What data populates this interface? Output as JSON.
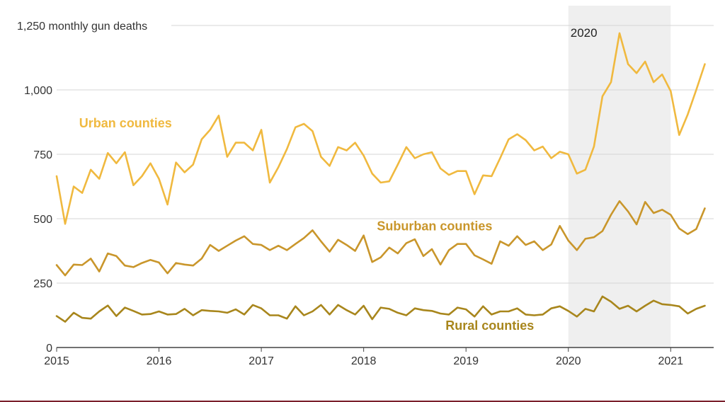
{
  "chart_data": {
    "type": "line",
    "ylabel": "monthly gun deaths",
    "ylim": [
      0,
      1250
    ],
    "yticks": [
      0,
      250,
      500,
      750,
      1000,
      1250
    ],
    "ytick_labels": [
      "0",
      "250",
      "500",
      "750",
      "1,000",
      "1,250"
    ],
    "ytick_top_suffix": "monthly gun deaths",
    "xlim": [
      2015,
      2021.42
    ],
    "xticks": [
      2015,
      2016,
      2017,
      2018,
      2019,
      2020,
      2021
    ],
    "xtick_labels": [
      "2015",
      "2016",
      "2017",
      "2018",
      "2019",
      "2020",
      "2021"
    ],
    "grid": true,
    "highlight_band": {
      "start": 2020,
      "end": 2021,
      "label": "2020",
      "color": "#efefef"
    },
    "x_start": 2015,
    "x_step": 0.0833333,
    "series": [
      {
        "name": "Urban counties",
        "color": "#f0b93f",
        "values": [
          665,
          480,
          625,
          600,
          690,
          655,
          755,
          715,
          758,
          630,
          665,
          715,
          655,
          555,
          718,
          680,
          710,
          808,
          845,
          900,
          740,
          795,
          795,
          765,
          845,
          640,
          700,
          770,
          855,
          868,
          840,
          740,
          705,
          778,
          765,
          795,
          745,
          675,
          640,
          645,
          710,
          778,
          735,
          750,
          758,
          695,
          670,
          685,
          685,
          595,
          668,
          665,
          735,
          808,
          828,
          805,
          765,
          780,
          735,
          760,
          750,
          675,
          690,
          780,
          975,
          1030,
          1220,
          1100,
          1065,
          1110,
          1030,
          1060,
          995,
          825,
          905,
          1000,
          1100
        ]
      },
      {
        "name": "Suburban counties",
        "color": "#c9962b",
        "values": [
          320,
          280,
          322,
          320,
          345,
          295,
          365,
          355,
          318,
          312,
          328,
          340,
          330,
          288,
          328,
          322,
          318,
          345,
          398,
          375,
          395,
          415,
          432,
          402,
          398,
          378,
          395,
          378,
          402,
          425,
          455,
          412,
          372,
          418,
          398,
          375,
          435,
          332,
          350,
          388,
          365,
          405,
          420,
          355,
          382,
          322,
          378,
          402,
          402,
          358,
          342,
          325,
          412,
          395,
          432,
          398,
          412,
          378,
          400,
          472,
          415,
          378,
          422,
          428,
          452,
          515,
          568,
          528,
          478,
          565,
          522,
          535,
          515,
          462,
          440,
          460,
          540
        ]
      },
      {
        "name": "Rural counties",
        "color": "#a8861c",
        "values": [
          122,
          100,
          135,
          115,
          112,
          140,
          163,
          122,
          155,
          142,
          128,
          130,
          140,
          128,
          130,
          150,
          125,
          145,
          142,
          140,
          135,
          148,
          128,
          165,
          152,
          125,
          125,
          112,
          160,
          125,
          140,
          165,
          128,
          165,
          145,
          128,
          162,
          110,
          155,
          150,
          135,
          125,
          152,
          145,
          142,
          132,
          128,
          155,
          148,
          120,
          160,
          128,
          140,
          140,
          152,
          128,
          125,
          128,
          152,
          160,
          142,
          120,
          150,
          140,
          198,
          178,
          150,
          162,
          140,
          162,
          182,
          168,
          165,
          160,
          132,
          150,
          162
        ]
      }
    ],
    "series_labels": [
      {
        "text": "Urban counties",
        "x": 2015.22,
        "y": 855
      },
      {
        "text": "Suburban counties",
        "x": 2018.13,
        "y": 455
      },
      {
        "text": "Rural counties",
        "x": 2018.8,
        "y": 68
      }
    ]
  }
}
